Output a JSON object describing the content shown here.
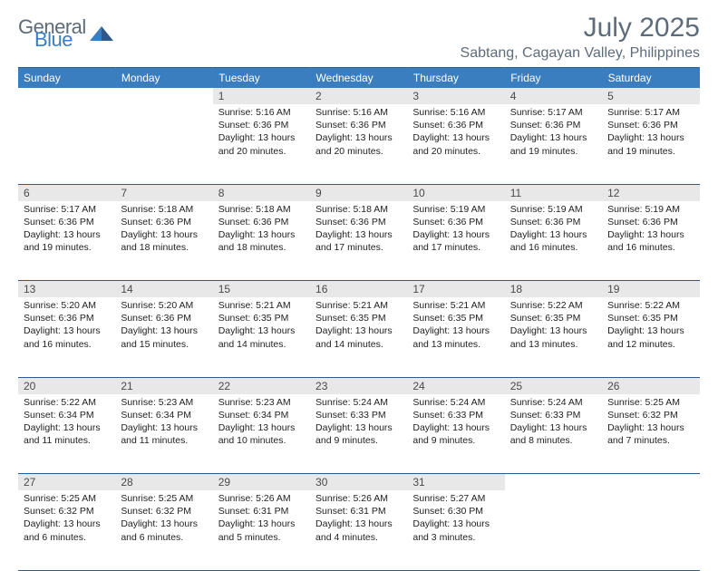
{
  "brand": {
    "word1": "General",
    "word2": "Blue"
  },
  "title": "July 2025",
  "location": "Sabtang, Cagayan Valley, Philippines",
  "colors": {
    "header_bg": "#3a7ebf",
    "header_text": "#ffffff",
    "daynum_bg": "#e8e8e8",
    "border": "#2d5a8a",
    "title_color": "#5d6c7a",
    "logo_gray": "#5d6c7a",
    "logo_blue": "#3a7ebf"
  },
  "day_headers": [
    "Sunday",
    "Monday",
    "Tuesday",
    "Wednesday",
    "Thursday",
    "Friday",
    "Saturday"
  ],
  "weeks": [
    [
      null,
      null,
      {
        "n": "1",
        "sr": "5:16 AM",
        "ss": "6:36 PM",
        "dl": "13 hours and 20 minutes."
      },
      {
        "n": "2",
        "sr": "5:16 AM",
        "ss": "6:36 PM",
        "dl": "13 hours and 20 minutes."
      },
      {
        "n": "3",
        "sr": "5:16 AM",
        "ss": "6:36 PM",
        "dl": "13 hours and 20 minutes."
      },
      {
        "n": "4",
        "sr": "5:17 AM",
        "ss": "6:36 PM",
        "dl": "13 hours and 19 minutes."
      },
      {
        "n": "5",
        "sr": "5:17 AM",
        "ss": "6:36 PM",
        "dl": "13 hours and 19 minutes."
      }
    ],
    [
      {
        "n": "6",
        "sr": "5:17 AM",
        "ss": "6:36 PM",
        "dl": "13 hours and 19 minutes."
      },
      {
        "n": "7",
        "sr": "5:18 AM",
        "ss": "6:36 PM",
        "dl": "13 hours and 18 minutes."
      },
      {
        "n": "8",
        "sr": "5:18 AM",
        "ss": "6:36 PM",
        "dl": "13 hours and 18 minutes."
      },
      {
        "n": "9",
        "sr": "5:18 AM",
        "ss": "6:36 PM",
        "dl": "13 hours and 17 minutes."
      },
      {
        "n": "10",
        "sr": "5:19 AM",
        "ss": "6:36 PM",
        "dl": "13 hours and 17 minutes."
      },
      {
        "n": "11",
        "sr": "5:19 AM",
        "ss": "6:36 PM",
        "dl": "13 hours and 16 minutes."
      },
      {
        "n": "12",
        "sr": "5:19 AM",
        "ss": "6:36 PM",
        "dl": "13 hours and 16 minutes."
      }
    ],
    [
      {
        "n": "13",
        "sr": "5:20 AM",
        "ss": "6:36 PM",
        "dl": "13 hours and 16 minutes."
      },
      {
        "n": "14",
        "sr": "5:20 AM",
        "ss": "6:36 PM",
        "dl": "13 hours and 15 minutes."
      },
      {
        "n": "15",
        "sr": "5:21 AM",
        "ss": "6:35 PM",
        "dl": "13 hours and 14 minutes."
      },
      {
        "n": "16",
        "sr": "5:21 AM",
        "ss": "6:35 PM",
        "dl": "13 hours and 14 minutes."
      },
      {
        "n": "17",
        "sr": "5:21 AM",
        "ss": "6:35 PM",
        "dl": "13 hours and 13 minutes."
      },
      {
        "n": "18",
        "sr": "5:22 AM",
        "ss": "6:35 PM",
        "dl": "13 hours and 13 minutes."
      },
      {
        "n": "19",
        "sr": "5:22 AM",
        "ss": "6:35 PM",
        "dl": "13 hours and 12 minutes."
      }
    ],
    [
      {
        "n": "20",
        "sr": "5:22 AM",
        "ss": "6:34 PM",
        "dl": "13 hours and 11 minutes."
      },
      {
        "n": "21",
        "sr": "5:23 AM",
        "ss": "6:34 PM",
        "dl": "13 hours and 11 minutes."
      },
      {
        "n": "22",
        "sr": "5:23 AM",
        "ss": "6:34 PM",
        "dl": "13 hours and 10 minutes."
      },
      {
        "n": "23",
        "sr": "5:24 AM",
        "ss": "6:33 PM",
        "dl": "13 hours and 9 minutes."
      },
      {
        "n": "24",
        "sr": "5:24 AM",
        "ss": "6:33 PM",
        "dl": "13 hours and 9 minutes."
      },
      {
        "n": "25",
        "sr": "5:24 AM",
        "ss": "6:33 PM",
        "dl": "13 hours and 8 minutes."
      },
      {
        "n": "26",
        "sr": "5:25 AM",
        "ss": "6:32 PM",
        "dl": "13 hours and 7 minutes."
      }
    ],
    [
      {
        "n": "27",
        "sr": "5:25 AM",
        "ss": "6:32 PM",
        "dl": "13 hours and 6 minutes."
      },
      {
        "n": "28",
        "sr": "5:25 AM",
        "ss": "6:32 PM",
        "dl": "13 hours and 6 minutes."
      },
      {
        "n": "29",
        "sr": "5:26 AM",
        "ss": "6:31 PM",
        "dl": "13 hours and 5 minutes."
      },
      {
        "n": "30",
        "sr": "5:26 AM",
        "ss": "6:31 PM",
        "dl": "13 hours and 4 minutes."
      },
      {
        "n": "31",
        "sr": "5:27 AM",
        "ss": "6:30 PM",
        "dl": "13 hours and 3 minutes."
      },
      null,
      null
    ]
  ],
  "labels": {
    "sunrise": "Sunrise:",
    "sunset": "Sunset:",
    "daylight": "Daylight:"
  }
}
